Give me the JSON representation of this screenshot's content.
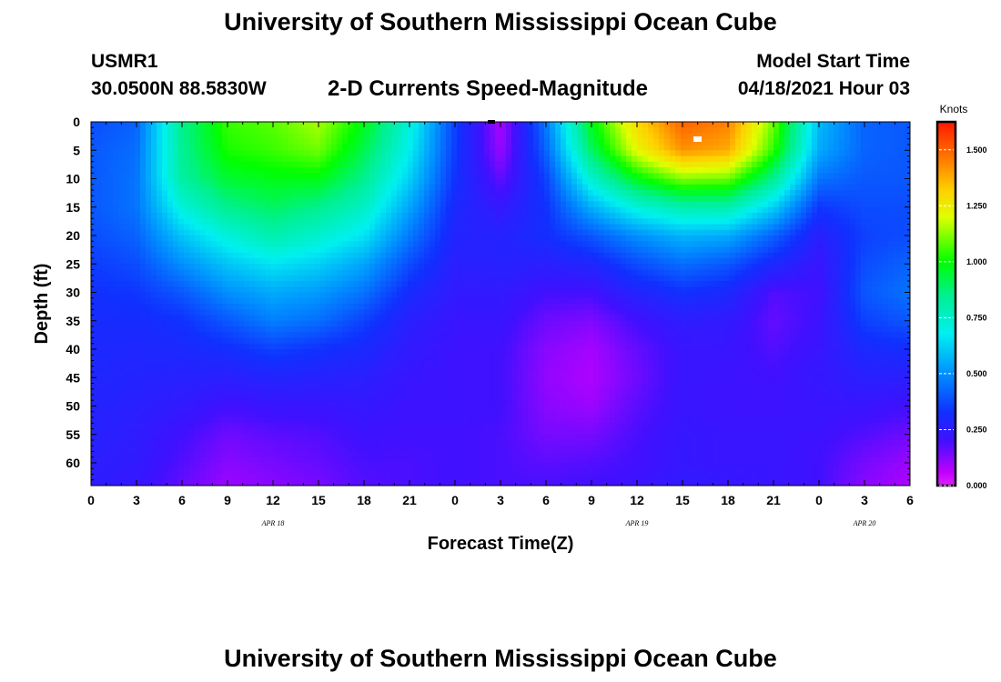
{
  "header": {
    "title": "University of Southern Mississippi Ocean Cube",
    "station_id": "USMR1",
    "coordinates": "30.0500N  88.5830W",
    "subtitle": "2-D Currents Speed-Magnitude",
    "model_start_label": "Model Start Time",
    "model_start_value": "04/18/2021 Hour 03"
  },
  "footer": {
    "title": "University of Southern Mississippi Ocean Cube"
  },
  "chart_data": {
    "type": "heatmap",
    "title": "2-D Currents Speed-Magnitude",
    "xlabel": "Forecast Time(Z)",
    "ylabel": "Depth (ft)",
    "x_range_hours": [
      0,
      54
    ],
    "y_range_ft": [
      0,
      64
    ],
    "y_inverted": true,
    "x_ticks": [
      {
        "hour": 0,
        "label": "0"
      },
      {
        "hour": 3,
        "label": "3"
      },
      {
        "hour": 6,
        "label": "6"
      },
      {
        "hour": 9,
        "label": "9"
      },
      {
        "hour": 12,
        "label": "12"
      },
      {
        "hour": 15,
        "label": "15"
      },
      {
        "hour": 18,
        "label": "18"
      },
      {
        "hour": 21,
        "label": "21"
      },
      {
        "hour": 24,
        "label": "0"
      },
      {
        "hour": 27,
        "label": "3"
      },
      {
        "hour": 30,
        "label": "6"
      },
      {
        "hour": 33,
        "label": "9"
      },
      {
        "hour": 36,
        "label": "12"
      },
      {
        "hour": 39,
        "label": "15"
      },
      {
        "hour": 42,
        "label": "18"
      },
      {
        "hour": 45,
        "label": "21"
      },
      {
        "hour": 48,
        "label": "0"
      },
      {
        "hour": 51,
        "label": "3"
      },
      {
        "hour": 54,
        "label": "6"
      }
    ],
    "date_labels": [
      {
        "hour": 12,
        "label": "APR 18"
      },
      {
        "hour": 36,
        "label": "APR 19"
      },
      {
        "hour": 51,
        "label": "APR 20"
      }
    ],
    "y_ticks": [
      0,
      5,
      10,
      15,
      20,
      25,
      30,
      35,
      40,
      45,
      50,
      55,
      60
    ],
    "colorbar": {
      "unit": "Knots",
      "min": 0.0,
      "max": 1.625,
      "ticks": [
        {
          "value": 0.0,
          "label": "0.000"
        },
        {
          "value": 0.25,
          "label": "0.250"
        },
        {
          "value": 0.5,
          "label": "0.500"
        },
        {
          "value": 0.75,
          "label": "0.750"
        },
        {
          "value": 1.0,
          "label": "1.000"
        },
        {
          "value": 1.25,
          "label": "1.250"
        },
        {
          "value": 1.5,
          "label": "1.500"
        }
      ],
      "stops": [
        {
          "value": 0.0,
          "color": "#e020ff"
        },
        {
          "value": 0.06,
          "color": "#c000ff"
        },
        {
          "value": 0.2,
          "color": "#4010ff"
        },
        {
          "value": 0.33,
          "color": "#1030ff"
        },
        {
          "value": 0.5,
          "color": "#0090ff"
        },
        {
          "value": 0.68,
          "color": "#00f0f0"
        },
        {
          "value": 0.85,
          "color": "#00f090"
        },
        {
          "value": 1.0,
          "color": "#00ff00"
        },
        {
          "value": 1.2,
          "color": "#e0ff00"
        },
        {
          "value": 1.32,
          "color": "#ffd000"
        },
        {
          "value": 1.45,
          "color": "#ff8000"
        },
        {
          "value": 1.625,
          "color": "#ff1800"
        }
      ]
    },
    "speed_field": {
      "hours": [
        0,
        3,
        6,
        9,
        12,
        15,
        18,
        21,
        24,
        27,
        30,
        33,
        36,
        39,
        42,
        45,
        48,
        51,
        54
      ],
      "depths": [
        0,
        5,
        10,
        15,
        20,
        25,
        30,
        35,
        40,
        45,
        50,
        55,
        60,
        64
      ],
      "values": [
        [
          0.38,
          0.4,
          0.4,
          0.4,
          0.38,
          0.35,
          0.33,
          0.31,
          0.3,
          0.29,
          0.28,
          0.27,
          0.26,
          0.25
        ],
        [
          0.42,
          0.44,
          0.45,
          0.45,
          0.42,
          0.38,
          0.34,
          0.31,
          0.29,
          0.28,
          0.26,
          0.25,
          0.24,
          0.23
        ],
        [
          0.85,
          0.84,
          0.82,
          0.72,
          0.6,
          0.5,
          0.4,
          0.33,
          0.3,
          0.27,
          0.24,
          0.2,
          0.18,
          0.16
        ],
        [
          1.05,
          1.02,
          0.95,
          0.85,
          0.72,
          0.6,
          0.5,
          0.4,
          0.32,
          0.26,
          0.2,
          0.15,
          0.12,
          0.1
        ],
        [
          1.08,
          1.05,
          0.98,
          0.9,
          0.8,
          0.66,
          0.55,
          0.47,
          0.36,
          0.28,
          0.22,
          0.17,
          0.14,
          0.12
        ],
        [
          1.15,
          1.1,
          0.98,
          0.85,
          0.74,
          0.62,
          0.52,
          0.44,
          0.33,
          0.27,
          0.22,
          0.18,
          0.16,
          0.14
        ],
        [
          0.98,
          0.92,
          0.85,
          0.76,
          0.66,
          0.54,
          0.45,
          0.36,
          0.3,
          0.26,
          0.23,
          0.21,
          0.19,
          0.18
        ],
        [
          0.72,
          0.68,
          0.62,
          0.54,
          0.46,
          0.38,
          0.31,
          0.26,
          0.24,
          0.22,
          0.21,
          0.2,
          0.19,
          0.19
        ],
        [
          0.36,
          0.35,
          0.33,
          0.3,
          0.28,
          0.26,
          0.24,
          0.22,
          0.21,
          0.21,
          0.21,
          0.2,
          0.2,
          0.2
        ],
        [
          0.08,
          0.1,
          0.16,
          0.23,
          0.27,
          0.27,
          0.24,
          0.22,
          0.2,
          0.2,
          0.2,
          0.19,
          0.19,
          0.19
        ],
        [
          0.46,
          0.42,
          0.36,
          0.33,
          0.32,
          0.26,
          0.2,
          0.15,
          0.12,
          0.11,
          0.12,
          0.14,
          0.17,
          0.19
        ],
        [
          0.98,
          0.9,
          0.74,
          0.56,
          0.4,
          0.29,
          0.2,
          0.13,
          0.09,
          0.08,
          0.1,
          0.14,
          0.18,
          0.2
        ],
        [
          1.3,
          1.22,
          0.98,
          0.72,
          0.5,
          0.38,
          0.28,
          0.2,
          0.16,
          0.15,
          0.17,
          0.19,
          0.2,
          0.21
        ],
        [
          1.5,
          1.42,
          1.12,
          0.8,
          0.57,
          0.44,
          0.33,
          0.25,
          0.22,
          0.22,
          0.22,
          0.23,
          0.23,
          0.24
        ],
        [
          1.45,
          1.38,
          1.1,
          0.8,
          0.55,
          0.4,
          0.3,
          0.24,
          0.22,
          0.21,
          0.21,
          0.22,
          0.22,
          0.23
        ],
        [
          1.1,
          1.04,
          0.85,
          0.62,
          0.42,
          0.3,
          0.18,
          0.16,
          0.18,
          0.2,
          0.21,
          0.22,
          0.22,
          0.22
        ],
        [
          0.58,
          0.55,
          0.45,
          0.34,
          0.26,
          0.22,
          0.2,
          0.21,
          0.22,
          0.23,
          0.22,
          0.21,
          0.2,
          0.2
        ],
        [
          0.42,
          0.42,
          0.4,
          0.38,
          0.36,
          0.38,
          0.4,
          0.36,
          0.3,
          0.26,
          0.22,
          0.18,
          0.14,
          0.12
        ],
        [
          0.4,
          0.4,
          0.4,
          0.38,
          0.38,
          0.42,
          0.45,
          0.4,
          0.32,
          0.26,
          0.2,
          0.15,
          0.1,
          0.08
        ]
      ]
    }
  }
}
